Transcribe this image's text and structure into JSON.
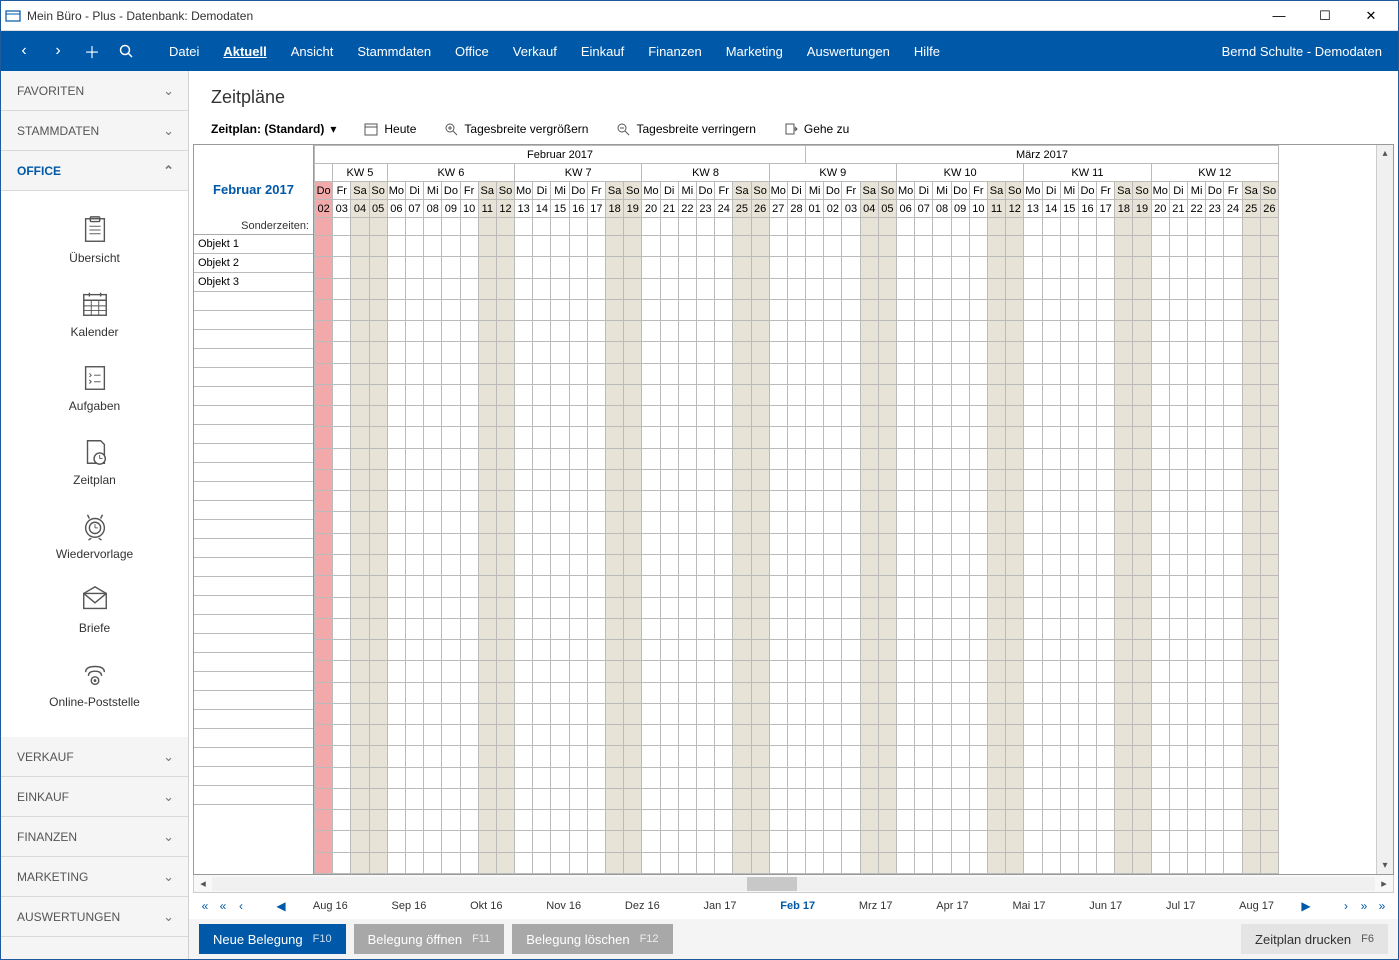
{
  "window_title": "Mein Büro - Plus - Datenbank: Demodaten",
  "user_label": "Bernd Schulte - Demodaten",
  "menu": [
    "Datei",
    "Aktuell",
    "Ansicht",
    "Stammdaten",
    "Office",
    "Verkauf",
    "Einkauf",
    "Finanzen",
    "Marketing",
    "Auswertungen",
    "Hilfe"
  ],
  "menu_active": "Aktuell",
  "sidebar": {
    "sections": [
      {
        "label": "FAVORITEN",
        "open": false
      },
      {
        "label": "STAMMDATEN",
        "open": false
      },
      {
        "label": "OFFICE",
        "open": true
      },
      {
        "label": "VERKAUF",
        "open": false
      },
      {
        "label": "EINKAUF",
        "open": false
      },
      {
        "label": "FINANZEN",
        "open": false
      },
      {
        "label": "MARKETING",
        "open": false
      },
      {
        "label": "AUSWERTUNGEN",
        "open": false
      }
    ],
    "office_items": [
      "Übersicht",
      "Kalender",
      "Aufgaben",
      "Zeitplan",
      "Wiedervorlage",
      "Briefe",
      "Online-Poststelle"
    ]
  },
  "page_title": "Zeitpläne",
  "toolbar": {
    "plan_label": "Zeitplan: (Standard)",
    "today": "Heute",
    "zoom_in": "Tagesbreite vergrößern",
    "zoom_out": "Tagesbreite verringern",
    "goto": "Gehe zu"
  },
  "calendar": {
    "display_month": "Februar 2017",
    "sonder_label": "Sonderzeiten:",
    "months_header": [
      {
        "label": "Februar 2017",
        "cols": 27
      },
      {
        "label": "März 2017",
        "cols": 26
      }
    ],
    "weeks": [
      {
        "label": "",
        "cols": 1
      },
      {
        "label": "KW 5",
        "cols": 3
      },
      {
        "label": "KW 6",
        "cols": 7
      },
      {
        "label": "KW 7",
        "cols": 7
      },
      {
        "label": "KW 8",
        "cols": 7
      },
      {
        "label": "KW 9",
        "cols": 7
      },
      {
        "label": "KW 10",
        "cols": 7
      },
      {
        "label": "KW 11",
        "cols": 7
      },
      {
        "label": "KW 12",
        "cols": 7
      }
    ],
    "days": [
      {
        "dow": "Do",
        "num": "02",
        "today": true
      },
      {
        "dow": "Fr",
        "num": "03"
      },
      {
        "dow": "Sa",
        "num": "04",
        "we": true
      },
      {
        "dow": "So",
        "num": "05",
        "we": true
      },
      {
        "dow": "Mo",
        "num": "06"
      },
      {
        "dow": "Di",
        "num": "07"
      },
      {
        "dow": "Mi",
        "num": "08"
      },
      {
        "dow": "Do",
        "num": "09"
      },
      {
        "dow": "Fr",
        "num": "10"
      },
      {
        "dow": "Sa",
        "num": "11",
        "we": true
      },
      {
        "dow": "So",
        "num": "12",
        "we": true
      },
      {
        "dow": "Mo",
        "num": "13"
      },
      {
        "dow": "Di",
        "num": "14"
      },
      {
        "dow": "Mi",
        "num": "15"
      },
      {
        "dow": "Do",
        "num": "16"
      },
      {
        "dow": "Fr",
        "num": "17"
      },
      {
        "dow": "Sa",
        "num": "18",
        "we": true
      },
      {
        "dow": "So",
        "num": "19",
        "we": true
      },
      {
        "dow": "Mo",
        "num": "20"
      },
      {
        "dow": "Di",
        "num": "21"
      },
      {
        "dow": "Mi",
        "num": "22"
      },
      {
        "dow": "Do",
        "num": "23"
      },
      {
        "dow": "Fr",
        "num": "24"
      },
      {
        "dow": "Sa",
        "num": "25",
        "we": true
      },
      {
        "dow": "So",
        "num": "26",
        "we": true
      },
      {
        "dow": "Mo",
        "num": "27"
      },
      {
        "dow": "Di",
        "num": "28"
      },
      {
        "dow": "Mi",
        "num": "01"
      },
      {
        "dow": "Do",
        "num": "02"
      },
      {
        "dow": "Fr",
        "num": "03"
      },
      {
        "dow": "Sa",
        "num": "04",
        "we": true
      },
      {
        "dow": "So",
        "num": "05",
        "we": true
      },
      {
        "dow": "Mo",
        "num": "06"
      },
      {
        "dow": "Di",
        "num": "07"
      },
      {
        "dow": "Mi",
        "num": "08"
      },
      {
        "dow": "Do",
        "num": "09"
      },
      {
        "dow": "Fr",
        "num": "10"
      },
      {
        "dow": "Sa",
        "num": "11",
        "we": true
      },
      {
        "dow": "So",
        "num": "12",
        "we": true
      },
      {
        "dow": "Mo",
        "num": "13"
      },
      {
        "dow": "Di",
        "num": "14"
      },
      {
        "dow": "Mi",
        "num": "15"
      },
      {
        "dow": "Do",
        "num": "16"
      },
      {
        "dow": "Fr",
        "num": "17"
      },
      {
        "dow": "Sa",
        "num": "18",
        "we": true
      },
      {
        "dow": "So",
        "num": "19",
        "we": true
      },
      {
        "dow": "Mo",
        "num": "20"
      },
      {
        "dow": "Di",
        "num": "21"
      },
      {
        "dow": "Mi",
        "num": "22"
      },
      {
        "dow": "Do",
        "num": "23"
      },
      {
        "dow": "Fr",
        "num": "24"
      },
      {
        "dow": "Sa",
        "num": "25",
        "we": true
      },
      {
        "dow": "So",
        "num": "26",
        "we": true
      }
    ],
    "objects": [
      "Objekt 1",
      "Objekt 2",
      "Objekt 3"
    ],
    "empty_rows": 27
  },
  "timeline": {
    "months": [
      "Aug 16",
      "Sep 16",
      "Okt 16",
      "Nov 16",
      "Dez 16",
      "Jan 17",
      "Feb 17",
      "Mrz 17",
      "Apr 17",
      "Mai 17",
      "Jun 17",
      "Jul 17",
      "Aug 17"
    ],
    "current": "Feb 17"
  },
  "footer": {
    "new": {
      "label": "Neue Belegung",
      "hk": "F10"
    },
    "open": {
      "label": "Belegung öffnen",
      "hk": "F11"
    },
    "del": {
      "label": "Belegung löschen",
      "hk": "F12"
    },
    "print": {
      "label": "Zeitplan drucken",
      "hk": "F6"
    }
  },
  "colors": {
    "primary": "#0058a8",
    "weekend": "#e7e3d6",
    "today": "#f2a9a9",
    "sidebar_bg": "#f5f5f5",
    "btn_secondary": "#a8a8a8"
  }
}
